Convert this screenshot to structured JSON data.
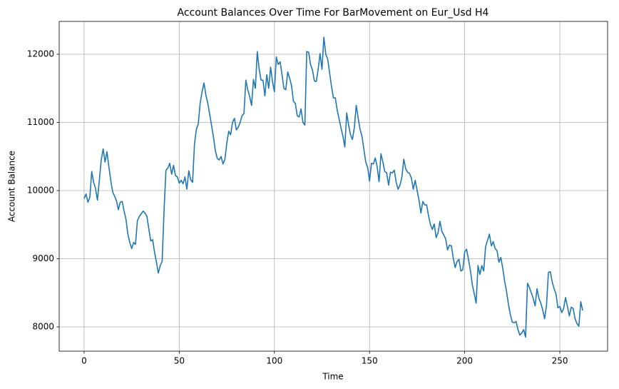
{
  "chart_data": {
    "type": "line",
    "title": "Account Balances Over Time For BarMovement on Eur_Usd H4",
    "xlabel": "Time",
    "ylabel": "Account Balance",
    "color": "#1f77b4",
    "values": [
      9880,
      9950,
      9830,
      9900,
      10280,
      10120,
      10030,
      9860,
      10150,
      10450,
      10610,
      10420,
      10570,
      10350,
      10150,
      9980,
      9920,
      9850,
      9720,
      9830,
      9840,
      9700,
      9580,
      9360,
      9240,
      9150,
      9240,
      9210,
      9560,
      9620,
      9660,
      9700,
      9670,
      9620,
      9440,
      9260,
      9280,
      9100,
      8950,
      8790,
      8900,
      8960,
      9700,
      10300,
      10330,
      10400,
      10240,
      10370,
      10220,
      10200,
      10110,
      10150,
      10100,
      10200,
      10020,
      10290,
      10160,
      10120,
      10680,
      10900,
      10980,
      11290,
      11450,
      11580,
      11400,
      11280,
      11120,
      10950,
      10780,
      10580,
      10470,
      10450,
      10500,
      10390,
      10460,
      10700,
      10870,
      10820,
      11000,
      11060,
      10890,
      10930,
      11000,
      11100,
      11130,
      11620,
      11480,
      11380,
      11250,
      11630,
      11500,
      12040,
      11780,
      11620,
      11620,
      11390,
      11700,
      11500,
      11810,
      11600,
      11450,
      11960,
      11850,
      11890,
      11700,
      11500,
      11480,
      11740,
      11650,
      11540,
      11310,
      11280,
      11100,
      11080,
      11200,
      11000,
      10960,
      12040,
      12030,
      11850,
      11770,
      11610,
      11600,
      11780,
      12010,
      11780,
      12250,
      12000,
      11930,
      11730,
      11530,
      11360,
      11360,
      11180,
      11050,
      10920,
      10800,
      10640,
      11140,
      10960,
      10820,
      10750,
      10920,
      11250,
      11070,
      10900,
      10800,
      10610,
      10420,
      10340,
      10140,
      10400,
      10390,
      10480,
      10350,
      10130,
      10540,
      10420,
      10280,
      10260,
      10080,
      10270,
      10260,
      10300,
      10120,
      10020,
      10080,
      10200,
      10460,
      10320,
      10270,
      10250,
      10180,
      10020,
      10150,
      10000,
      9860,
      9670,
      9840,
      9790,
      9790,
      9630,
      9500,
      9430,
      9510,
      9310,
      9380,
      9550,
      9400,
      9350,
      9290,
      9130,
      9200,
      9190,
      9010,
      8870,
      8960,
      8990,
      8820,
      8840,
      9100,
      9140,
      8990,
      8830,
      8620,
      8490,
      8350,
      8900,
      8770,
      8900,
      8820,
      9180,
      9270,
      9360,
      9190,
      9250,
      9150,
      9120,
      8950,
      9020,
      8860,
      8670,
      8520,
      8330,
      8180,
      8070,
      8060,
      8080,
      7960,
      7880,
      7910,
      7960,
      7850,
      8640,
      8580,
      8500,
      8420,
      8310,
      8560,
      8420,
      8350,
      8250,
      8120,
      8320,
      8800,
      8810,
      8660,
      8560,
      8480,
      8280,
      8300,
      8210,
      8270,
      8430,
      8300,
      8160,
      8290,
      8270,
      8120,
      8050,
      8010,
      8370,
      8240
    ],
    "xlim": [
      -13.1,
      275.1
    ],
    "xticks": [
      0,
      50,
      100,
      150,
      200,
      250
    ],
    "ylim": [
      7644,
      12482
    ],
    "yticks": [
      8000,
      9000,
      10000,
      11000,
      12000
    ],
    "grid": true
  }
}
